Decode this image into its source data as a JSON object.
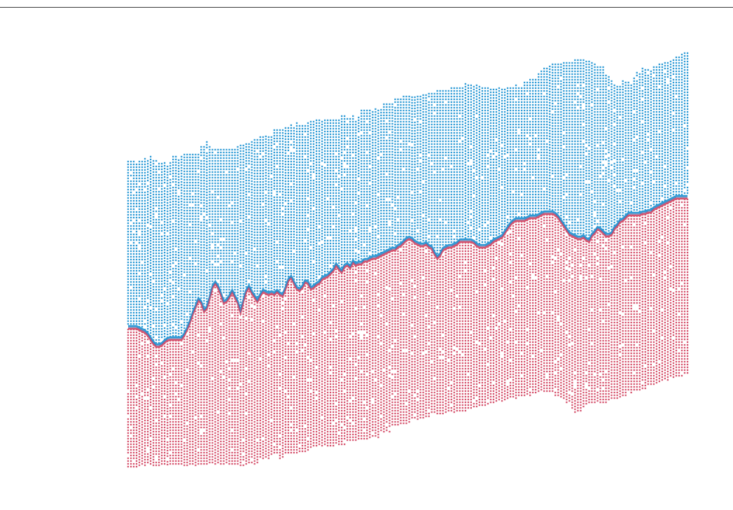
{
  "chart_data": {
    "type": "scatter",
    "description_kind": "dot-matrix band chart with a dividing line",
    "x": [
      0,
      1,
      2,
      3,
      4,
      5,
      6,
      7,
      8,
      9,
      10,
      11,
      12,
      13,
      14,
      15,
      16,
      17,
      18,
      19,
      20,
      21,
      22,
      23,
      24,
      25,
      26,
      27,
      28,
      29,
      30,
      31,
      32,
      33,
      34,
      35,
      36,
      37,
      38,
      39,
      40,
      41,
      42,
      43,
      44,
      45,
      46,
      47,
      48,
      49,
      50,
      51,
      52,
      53,
      54,
      55,
      56,
      57,
      58,
      59,
      60,
      61,
      62,
      63,
      64,
      65,
      66,
      67,
      68,
      69,
      70,
      71,
      72,
      73,
      74,
      75,
      76,
      77,
      78,
      79,
      80,
      81,
      82,
      83,
      84,
      85,
      86,
      87,
      88,
      89,
      90,
      91,
      92,
      93,
      94,
      95,
      96,
      97,
      98,
      99,
      100,
      101,
      102,
      103,
      104,
      105,
      106,
      107,
      108,
      109,
      110,
      111,
      112,
      113,
      114,
      115,
      116,
      117,
      118,
      119,
      120,
      121,
      122,
      123,
      124,
      125,
      126,
      127,
      128,
      129,
      130,
      131,
      132,
      133,
      134,
      135,
      136,
      137,
      138,
      139,
      140,
      141,
      142,
      143,
      144,
      145,
      146,
      147,
      148,
      149,
      150,
      151,
      152,
      153,
      154,
      155,
      156,
      157,
      158,
      159,
      160,
      161,
      162,
      163,
      164,
      165,
      166,
      167,
      168,
      169,
      170,
      171,
      172,
      173,
      174,
      175,
      176,
      177,
      178,
      179,
      180,
      181,
      182,
      183,
      184,
      185,
      186,
      187,
      188,
      189,
      190,
      191,
      192,
      193,
      194,
      195,
      196,
      197,
      198,
      199
    ],
    "upper_series": {
      "color": "#2e9bd6",
      "top": [
        231,
        231,
        231,
        231,
        231,
        231,
        227,
        230,
        224,
        230,
        230,
        234,
        234,
        233,
        238,
        233,
        224,
        224,
        229,
        224,
        221,
        221,
        221,
        221,
        221,
        221,
        210,
        210,
        203,
        210,
        210,
        214,
        214,
        214,
        214,
        214,
        214,
        214,
        214,
        210,
        208,
        204,
        206,
        206,
        203,
        200,
        200,
        196,
        196,
        195,
        196,
        196,
        186,
        186,
        186,
        186,
        183,
        183,
        179,
        183,
        176,
        180,
        180,
        180,
        176,
        174,
        174,
        172,
        172,
        174,
        172,
        172,
        172,
        172,
        172,
        172,
        166,
        166,
        166,
        166,
        166,
        170,
        168,
        158,
        158,
        158,
        158,
        156,
        156,
        158,
        157,
        149,
        149,
        149,
        149,
        142,
        142,
        142,
        138,
        138,
        138,
        139,
        139,
        138,
        138,
        136,
        136,
        134,
        134,
        134,
        130,
        130,
        130,
        130,
        130,
        126,
        126,
        126,
        126,
        126,
        120,
        122,
        122,
        124,
        122,
        124,
        126,
        126,
        126,
        128,
        128,
        128,
        126,
        128,
        128,
        126,
        126,
        126,
        122,
        126,
        126,
        118,
        118,
        114,
        114,
        114,
        102,
        102,
        98,
        98,
        95,
        92,
        92,
        92,
        92,
        90,
        90,
        90,
        90,
        86,
        86,
        86,
        86,
        88,
        88,
        90,
        92,
        96,
        96,
        96,
        104,
        110,
        116,
        122,
        124,
        124,
        116,
        118,
        118,
        122,
        112,
        104,
        106,
        98,
        100,
        100,
        102,
        96,
        96,
        92,
        92,
        90,
        90,
        88,
        86,
        82,
        82,
        78,
        76,
        76
      ]
    },
    "lower_series": {
      "color": "#d6546e",
      "bottom": [
        667,
        667,
        667,
        667,
        665,
        665,
        665,
        665,
        665,
        665,
        665,
        665,
        665,
        665,
        665,
        665,
        665,
        665,
        665,
        665,
        665,
        665,
        665,
        665,
        665,
        665,
        665,
        663,
        663,
        663,
        663,
        663,
        663,
        663,
        663,
        663,
        665,
        665,
        665,
        665,
        665,
        665,
        663,
        663,
        663,
        663,
        663,
        655,
        655,
        655,
        655,
        655,
        650,
        650,
        655,
        655,
        648,
        648,
        648,
        648,
        648,
        648,
        648,
        645,
        645,
        640,
        640,
        640,
        640,
        640,
        638,
        638,
        638,
        638,
        638,
        638,
        635,
        635,
        630,
        630,
        630,
        630,
        630,
        630,
        630,
        630,
        625,
        625,
        625,
        625,
        618,
        618,
        618,
        618,
        610,
        610,
        610,
        606,
        606,
        606,
        606,
        600,
        600,
        600,
        597,
        597,
        597,
        597,
        592,
        592,
        592,
        592,
        592,
        590,
        590,
        590,
        590,
        588,
        588,
        588,
        588,
        585,
        585,
        584,
        582,
        582,
        582,
        580,
        578,
        578,
        576,
        576,
        574,
        574,
        572,
        572,
        570,
        570,
        570,
        568,
        566,
        566,
        566,
        566,
        564,
        564,
        560,
        560,
        560,
        560,
        560,
        560,
        565,
        568,
        568,
        570,
        575,
        580,
        585,
        590,
        588,
        588,
        584,
        580,
        575,
        575,
        575,
        576,
        576,
        575,
        575,
        574,
        572,
        572,
        570,
        568,
        566,
        566,
        564,
        562,
        560,
        560,
        558,
        556,
        555,
        552,
        550,
        550,
        548,
        548,
        546,
        546,
        544,
        542,
        540,
        540,
        538,
        538,
        536,
        536
      ]
    },
    "divider": {
      "color": "#5a6ea8",
      "y": [
        468,
        468,
        468,
        468,
        470,
        472,
        474,
        478,
        484,
        490,
        494,
        494,
        492,
        488,
        485,
        484,
        484,
        484,
        484,
        484,
        478,
        470,
        460,
        448,
        438,
        428,
        432,
        444,
        440,
        426,
        410,
        404,
        410,
        420,
        432,
        430,
        424,
        416,
        424,
        432,
        446,
        430,
        416,
        410,
        418,
        424,
        430,
        422,
        416,
        418,
        420,
        418,
        420,
        416,
        420,
        422,
        412,
        400,
        396,
        404,
        412,
        414,
        410,
        402,
        404,
        412,
        410,
        406,
        404,
        398,
        396,
        394,
        390,
        386,
        378,
        384,
        388,
        380,
        378,
        382,
        374,
        378,
        376,
        376,
        372,
        372,
        370,
        368,
        368,
        366,
        364,
        362,
        360,
        358,
        356,
        356,
        352,
        350,
        346,
        342,
        340,
        342,
        346,
        348,
        350,
        350,
        348,
        352,
        354,
        362,
        368,
        364,
        356,
        354,
        352,
        352,
        350,
        348,
        344,
        344,
        344,
        344,
        344,
        346,
        350,
        352,
        352,
        352,
        350,
        348,
        344,
        342,
        340,
        338,
        332,
        326,
        320,
        316,
        314,
        314,
        314,
        314,
        312,
        310,
        310,
        310,
        308,
        306,
        304,
        304,
        304,
        304,
        306,
        310,
        316,
        322,
        328,
        334,
        336,
        338,
        340,
        340,
        338,
        342,
        344,
        336,
        332,
        326,
        328,
        332,
        336,
        336,
        334,
        326,
        322,
        316,
        314,
        310,
        306,
        306,
        306,
        306,
        306,
        304,
        304,
        302,
        302,
        298,
        296,
        294,
        292,
        290,
        288,
        286,
        284,
        282,
        282,
        282,
        282,
        282
      ]
    }
  }
}
